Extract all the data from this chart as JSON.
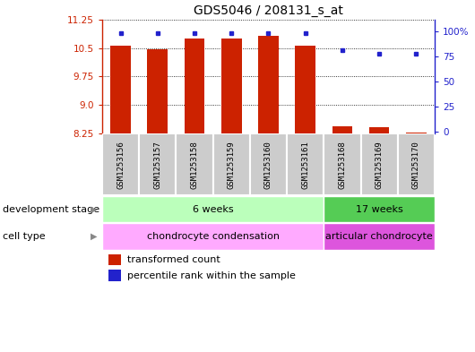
{
  "title": "GDS5046 / 208131_s_at",
  "samples": [
    "GSM1253156",
    "GSM1253157",
    "GSM1253158",
    "GSM1253159",
    "GSM1253160",
    "GSM1253161",
    "GSM1253168",
    "GSM1253169",
    "GSM1253170"
  ],
  "transformed_counts": [
    10.55,
    10.46,
    10.75,
    10.75,
    10.82,
    10.55,
    8.45,
    8.42,
    8.27
  ],
  "percentile_ranks": [
    98,
    98,
    98,
    98,
    98,
    98,
    81,
    78,
    78
  ],
  "ylim_left": [
    8.25,
    11.25
  ],
  "yticks_left": [
    8.25,
    9.0,
    9.75,
    10.5,
    11.25
  ],
  "yticks_right": [
    0,
    25,
    50,
    75,
    100
  ],
  "bar_color": "#cc2200",
  "dot_color": "#2222cc",
  "bar_width": 0.55,
  "baseline": 8.25,
  "dev_stage_labels": [
    "6 weeks",
    "17 weeks"
  ],
  "dev_stage_splits": [
    6,
    9
  ],
  "cell_type_labels": [
    "chondrocyte condensation",
    "articular chondrocyte"
  ],
  "cell_type_splits": [
    6,
    9
  ],
  "dev_stage_color_1": "#bbffbb",
  "dev_stage_color_2": "#55cc55",
  "cell_type_color_1": "#ffaaff",
  "cell_type_color_2": "#dd55dd",
  "row_label_dev": "development stage",
  "row_label_cell": "cell type",
  "legend_bar_label": "transformed count",
  "legend_dot_label": "percentile rank within the sample",
  "title_fontsize": 10,
  "tick_fontsize": 7.5,
  "label_fontsize": 8,
  "sample_fontsize": 6.5,
  "bg_color": "#ffffff",
  "grid_color": "#000000",
  "sample_bg_color": "#cccccc",
  "sample_border_color": "#ffffff"
}
